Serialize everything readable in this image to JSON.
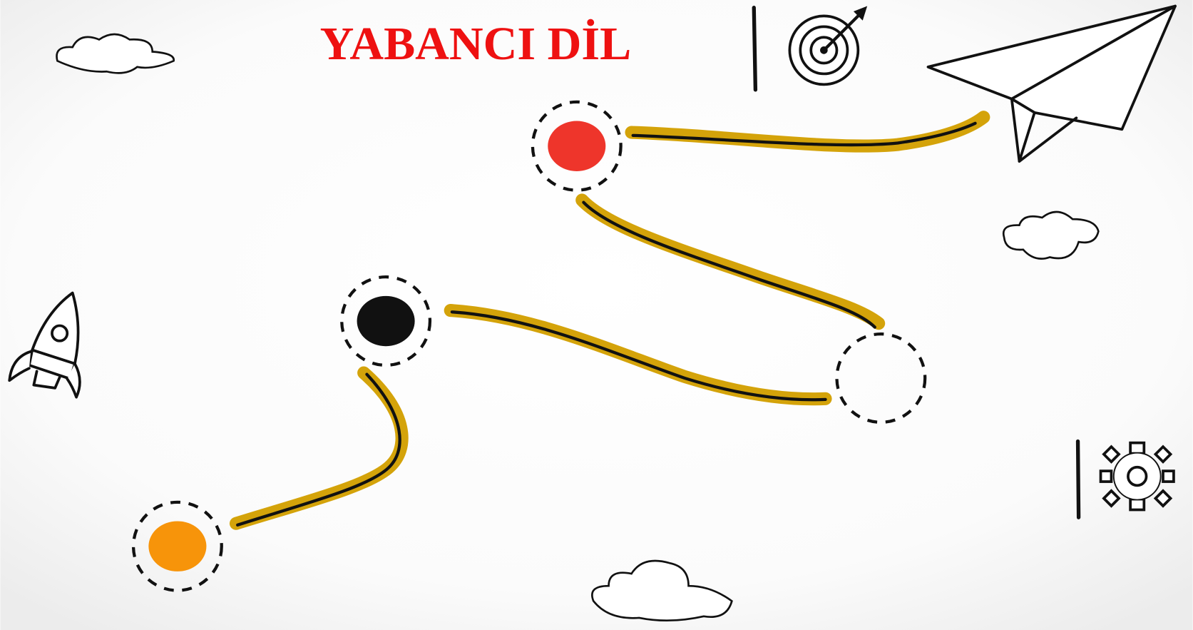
{
  "header": {
    "title": "YABANCI DİL"
  }
}
